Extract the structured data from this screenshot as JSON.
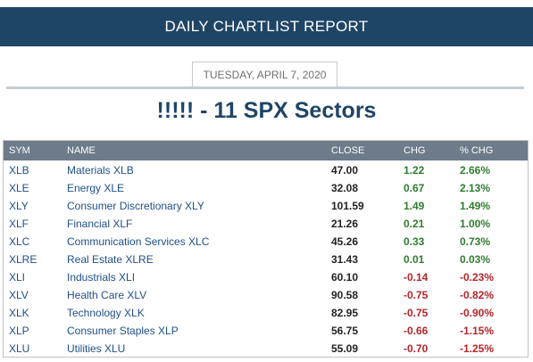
{
  "header": {
    "title": "DAILY CHARTLIST REPORT"
  },
  "report": {
    "date": "TUESDAY, APRIL 7, 2020"
  },
  "list": {
    "title": "!!!!! - 11 SPX Sectors"
  },
  "colors": {
    "banner": "#1f4566",
    "positive": "#2f7d2f",
    "negative": "#b3262b",
    "link": "#1f4f87"
  },
  "table": {
    "headers": {
      "sym": "SYM",
      "name": "NAME",
      "close": "CLOSE",
      "chg": "CHG",
      "pct": "% CHG"
    },
    "rows": [
      {
        "sym": "XLB",
        "name": "Materials XLB",
        "close": "47.00",
        "chg": "1.22",
        "pct": "2.66%",
        "dir": "pos"
      },
      {
        "sym": "XLE",
        "name": "Energy XLE",
        "close": "32.08",
        "chg": "0.67",
        "pct": "2.13%",
        "dir": "pos"
      },
      {
        "sym": "XLY",
        "name": "Consumer Discretionary XLY",
        "close": "101.59",
        "chg": "1.49",
        "pct": "1.49%",
        "dir": "pos"
      },
      {
        "sym": "XLF",
        "name": "Financial XLF",
        "close": "21.26",
        "chg": "0.21",
        "pct": "1.00%",
        "dir": "pos"
      },
      {
        "sym": "XLC",
        "name": "Communication Services XLC",
        "close": "45.26",
        "chg": "0.33",
        "pct": "0.73%",
        "dir": "pos"
      },
      {
        "sym": "XLRE",
        "name": "Real Estate XLRE",
        "close": "31.43",
        "chg": "0.01",
        "pct": "0.03%",
        "dir": "pos"
      },
      {
        "sym": "XLI",
        "name": "Industrials XLI",
        "close": "60.10",
        "chg": "-0.14",
        "pct": "-0.23%",
        "dir": "neg"
      },
      {
        "sym": "XLV",
        "name": "Health Care XLV",
        "close": "90.58",
        "chg": "-0.75",
        "pct": "-0.82%",
        "dir": "neg"
      },
      {
        "sym": "XLK",
        "name": "Technology XLK",
        "close": "82.95",
        "chg": "-0.75",
        "pct": "-0.90%",
        "dir": "neg"
      },
      {
        "sym": "XLP",
        "name": "Consumer Staples XLP",
        "close": "56.75",
        "chg": "-0.66",
        "pct": "-1.15%",
        "dir": "neg"
      },
      {
        "sym": "XLU",
        "name": "Utilities XLU",
        "close": "55.09",
        "chg": "-0.70",
        "pct": "-1.25%",
        "dir": "neg"
      }
    ]
  }
}
